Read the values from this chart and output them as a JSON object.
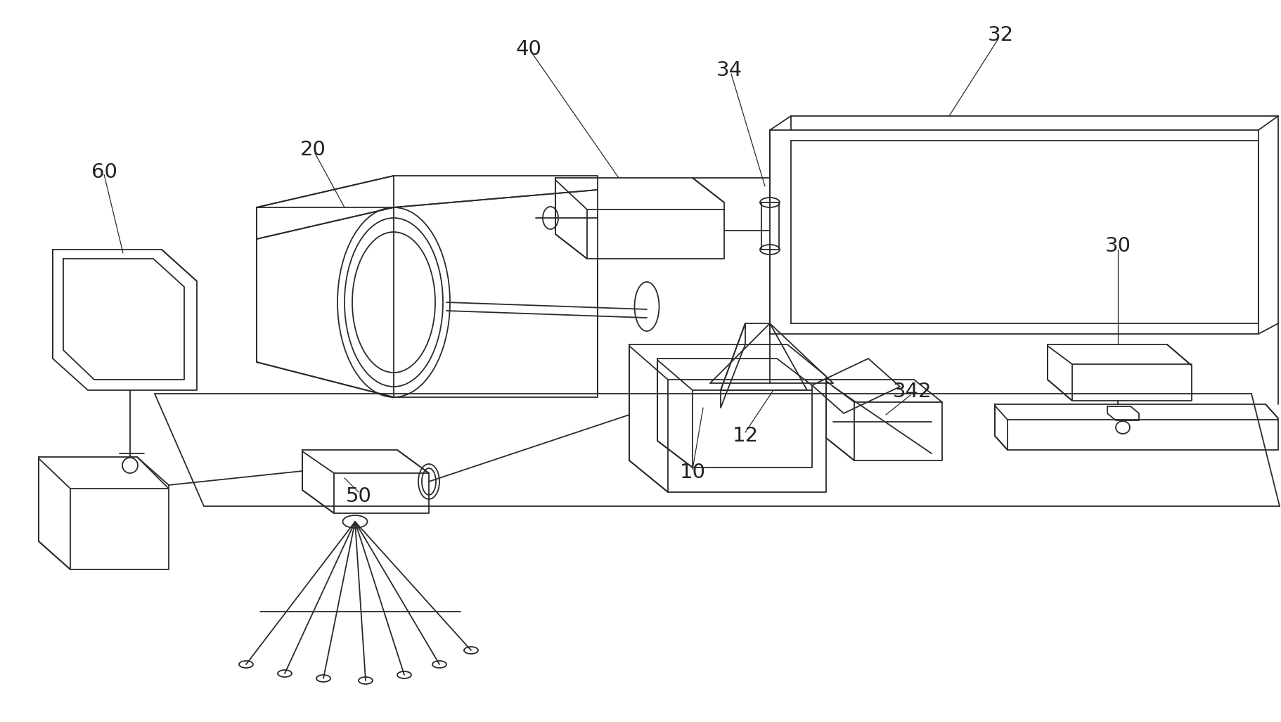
{
  "background_color": "#ffffff",
  "line_color": "#2a2a2a",
  "line_width": 1.3,
  "label_fontsize": 21,
  "label_color": "#222222"
}
